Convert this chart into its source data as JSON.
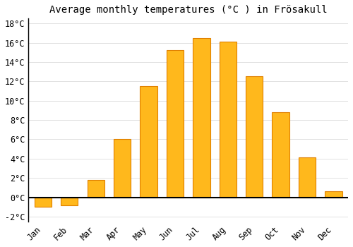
{
  "title": "Average monthly temperatures (°C ) in Frösakull",
  "months": [
    "Jan",
    "Feb",
    "Mar",
    "Apr",
    "May",
    "Jun",
    "Jul",
    "Aug",
    "Sep",
    "Oct",
    "Nov",
    "Dec"
  ],
  "values": [
    -1.0,
    -0.8,
    1.8,
    6.0,
    11.5,
    15.2,
    16.5,
    16.1,
    12.5,
    8.8,
    4.1,
    0.6
  ],
  "bar_color": "#FFB81C",
  "bar_edge_color": "#E08000",
  "background_color": "#ffffff",
  "grid_color": "#dddddd",
  "ylim": [
    -2.5,
    18.5
  ],
  "yticks": [
    -2,
    0,
    2,
    4,
    6,
    8,
    10,
    12,
    14,
    16,
    18
  ],
  "title_fontsize": 10,
  "tick_fontsize": 8.5
}
